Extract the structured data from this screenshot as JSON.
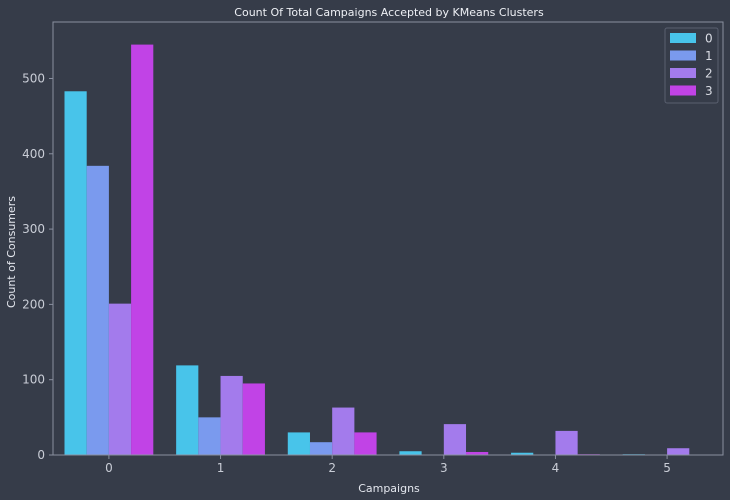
{
  "chart_data": {
    "type": "bar",
    "title": "Count Of Total Campaigns Accepted by KMeans Clusters",
    "xlabel": "Campaigns",
    "ylabel": "Count of Consumers",
    "categories": [
      "0",
      "1",
      "2",
      "3",
      "4",
      "5"
    ],
    "series": [
      {
        "name": "0",
        "color": "#48c4ea",
        "values": [
          483,
          119,
          30,
          5,
          3,
          1
        ]
      },
      {
        "name": "1",
        "color": "#7a9aee",
        "values": [
          384,
          50,
          17,
          0,
          0,
          0
        ]
      },
      {
        "name": "2",
        "color": "#a37bec",
        "values": [
          201,
          105,
          63,
          41,
          32,
          9
        ]
      },
      {
        "name": "3",
        "color": "#c143e6",
        "values": [
          545,
          95,
          30,
          4,
          1,
          0
        ]
      }
    ],
    "ylim": [
      0,
      575
    ],
    "yticks": [
      0,
      100,
      200,
      300,
      400,
      500
    ],
    "legend_position": "top-right",
    "grid": false,
    "colors": {
      "background": "#363c49",
      "axes_edge": "#8a90a0",
      "text": "#c9cdd6"
    }
  }
}
